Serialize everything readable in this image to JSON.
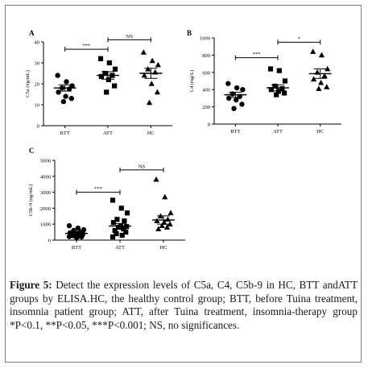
{
  "chart_data": [
    {
      "type": "scatter",
      "panel": "A",
      "ylabel": "C5a (ng/mL)",
      "ylim": [
        0,
        40
      ],
      "yticks": [
        0,
        10,
        20,
        30,
        40
      ],
      "categories": [
        "BTT",
        "ATT",
        "HC"
      ],
      "markers": [
        "circle",
        "square",
        "triangle"
      ],
      "series": [
        {
          "group": "BTT",
          "values": [
            24,
            21,
            19,
            18,
            17.5,
            16,
            14,
            13,
            11.5
          ],
          "mean": 18,
          "sem": 1.5
        },
        {
          "group": "ATT",
          "values": [
            32,
            30,
            27,
            25,
            24,
            23.5,
            22,
            19,
            16
          ],
          "mean": 24,
          "sem": 1.8
        },
        {
          "group": "HC",
          "values": [
            35,
            31,
            29,
            27,
            25.5,
            24,
            20,
            16,
            11
          ],
          "mean": 25,
          "sem": 2.4
        }
      ],
      "brackets": [
        {
          "from": "BTT",
          "to": "ATT",
          "label": "***",
          "y": 36.5
        },
        {
          "from": "ATT",
          "to": "HC",
          "label": "NS",
          "y": 41
        }
      ]
    },
    {
      "type": "scatter",
      "panel": "B",
      "ylabel": "C4 (mg/L)",
      "ylim": [
        0,
        1000
      ],
      "yticks": [
        0,
        200,
        400,
        600,
        800,
        1000
      ],
      "categories": [
        "BTT",
        "ATT",
        "HC"
      ],
      "markers": [
        "circle",
        "square",
        "triangle"
      ],
      "series": [
        {
          "group": "BTT",
          "values": [
            470,
            420,
            400,
            350,
            320,
            300,
            280,
            230,
            180
          ],
          "mean": 340,
          "sem": 30
        },
        {
          "group": "ATT",
          "values": [
            640,
            620,
            500,
            440,
            410,
            400,
            380,
            360,
            340
          ],
          "mean": 420,
          "sem": 35
        },
        {
          "group": "HC",
          "values": [
            840,
            800,
            640,
            600,
            560,
            520,
            480,
            430,
            410
          ],
          "mean": 585,
          "sem": 55
        }
      ],
      "brackets": [
        {
          "from": "BTT",
          "to": "ATT",
          "label": "***",
          "y": 770
        },
        {
          "from": "ATT",
          "to": "HC",
          "label": "*",
          "y": 950
        }
      ]
    },
    {
      "type": "scatter",
      "panel": "C",
      "ylabel": "C5b-9 (ng/mL)",
      "ylim": [
        0,
        5000
      ],
      "yticks": [
        0,
        1000,
        2000,
        3000,
        4000,
        5000
      ],
      "categories": [
        "BTT",
        "ATT",
        "HC"
      ],
      "markers": [
        "circle",
        "square",
        "triangle"
      ],
      "series": [
        {
          "group": "BTT",
          "values": [
            900,
            750,
            650,
            600,
            500,
            450,
            420,
            400,
            380,
            350,
            330,
            300,
            280,
            250,
            220,
            200,
            150
          ],
          "mean": 420,
          "sem": 50
        },
        {
          "group": "ATT",
          "values": [
            2500,
            2000,
            1700,
            1300,
            1200,
            1100,
            900,
            850,
            800,
            700,
            600,
            500,
            400,
            300,
            200
          ],
          "mean": 880,
          "sem": 160
        },
        {
          "group": "HC",
          "values": [
            3800,
            2700,
            1700,
            1500,
            1300,
            1200,
            1100,
            1000,
            900,
            800,
            700
          ],
          "mean": 1260,
          "sem": 260
        }
      ],
      "brackets": [
        {
          "from": "BTT",
          "to": "ATT",
          "label": "***",
          "y": 3000
        },
        {
          "from": "ATT",
          "to": "HC",
          "label": "NS",
          "y": 4400
        }
      ]
    }
  ],
  "caption": {
    "label": "Figure 5:",
    "text": " Detect the expression levels of C5a, C4, C5b-9 in HC, BTT andATT groups by ELISA.HC, the healthy control group; BTT, before Tuina treatment, insomnia patient group; ATT, after Tuina treatment, insomnia-therapy group *P<0.1, **P<0.05, ***P<0.001; NS, no significances."
  }
}
